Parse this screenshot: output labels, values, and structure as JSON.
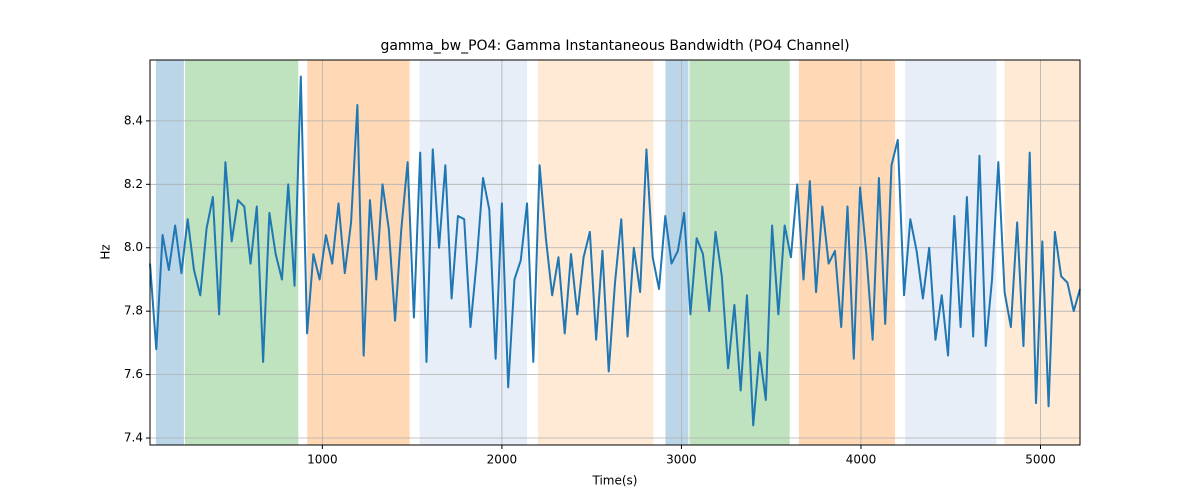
{
  "chart_data": {
    "type": "line",
    "title": "gamma_bw_PO4: Gamma Instantaneous Bandwidth (PO4 Channel)",
    "x_label": "Time(s)",
    "y_label": "Hz",
    "xlim": [
      40,
      5220
    ],
    "ylim": [
      7.378,
      8.592
    ],
    "xticks": [
      1000,
      2000,
      3000,
      4000,
      5000
    ],
    "yticks": [
      7.4,
      7.6,
      7.8,
      {
        "value": 8,
        "label": "8.0"
      },
      8.2,
      8.4
    ],
    "grid": true,
    "region_opacity": 0.3,
    "regions": [
      {
        "start": 73,
        "end": 229,
        "color": "#1f77b4"
      },
      {
        "start": 235,
        "end": 866,
        "color": "#2ca02c"
      },
      {
        "start": 916,
        "end": 1486,
        "color": "#ff7f0e"
      },
      {
        "start": 1542,
        "end": 2140,
        "color": "#aec7e8"
      },
      {
        "start": 2201,
        "end": 2844,
        "color": "#ffbb78"
      },
      {
        "start": 2911,
        "end": 3039,
        "color": "#1f77b4"
      },
      {
        "start": 3045,
        "end": 3603,
        "color": "#2ca02c"
      },
      {
        "start": 3654,
        "end": 4190,
        "color": "#ff7f0e"
      },
      {
        "start": 4246,
        "end": 4754,
        "color": "#aec7e8"
      },
      {
        "start": 4799,
        "end": 5220,
        "color": "#ffbb78"
      }
    ],
    "x": [
      40,
      75,
      110,
      145,
      180,
      215,
      250,
      285,
      320,
      355,
      390,
      425,
      460,
      495,
      530,
      565,
      600,
      635,
      670,
      705,
      740,
      775,
      810,
      845,
      880,
      915,
      950,
      985,
      1020,
      1055,
      1090,
      1125,
      1160,
      1195,
      1230,
      1265,
      1300,
      1335,
      1370,
      1405,
      1440,
      1475,
      1510,
      1545,
      1580,
      1615,
      1650,
      1685,
      1720,
      1755,
      1790,
      1825,
      1860,
      1895,
      1930,
      1965,
      2000,
      2035,
      2070,
      2105,
      2140,
      2175,
      2210,
      2245,
      2280,
      2315,
      2350,
      2385,
      2420,
      2455,
      2490,
      2525,
      2560,
      2595,
      2630,
      2665,
      2700,
      2735,
      2770,
      2805,
      2840,
      2875,
      2910,
      2945,
      2980,
      3015,
      3050,
      3085,
      3120,
      3155,
      3190,
      3225,
      3260,
      3295,
      3330,
      3365,
      3400,
      3435,
      3470,
      3505,
      3540,
      3575,
      3610,
      3645,
      3680,
      3715,
      3750,
      3785,
      3820,
      3855,
      3890,
      3925,
      3960,
      3995,
      4030,
      4065,
      4100,
      4135,
      4170,
      4205,
      4240,
      4275,
      4310,
      4345,
      4380,
      4415,
      4450,
      4485,
      4520,
      4555,
      4590,
      4625,
      4660,
      4695,
      4730,
      4765,
      4800,
      4835,
      4870,
      4905,
      4940,
      4975,
      5010,
      5045,
      5080,
      5115,
      5150,
      5185,
      5220
    ],
    "series": [
      {
        "color": "#1f77b4",
        "values": [
          7.95,
          7.68,
          8.04,
          7.93,
          8.07,
          7.92,
          8.09,
          7.93,
          7.85,
          8.06,
          8.16,
          7.79,
          8.27,
          8.02,
          8.15,
          8.13,
          7.95,
          8.13,
          7.64,
          8.11,
          7.98,
          7.9,
          8.2,
          7.88,
          8.54,
          7.73,
          7.98,
          7.9,
          8.04,
          7.95,
          8.14,
          7.92,
          8.08,
          8.45,
          7.66,
          8.15,
          7.9,
          8.2,
          8.06,
          7.77,
          8.06,
          8.27,
          7.78,
          8.3,
          7.64,
          8.31,
          8.0,
          8.26,
          7.84,
          8.1,
          8.09,
          7.75,
          7.96,
          8.22,
          8.12,
          7.65,
          8.14,
          7.56,
          7.9,
          7.96,
          8.14,
          7.64,
          8.26,
          8.03,
          7.85,
          7.97,
          7.73,
          7.98,
          7.79,
          7.97,
          8.05,
          7.71,
          7.99,
          7.61,
          7.89,
          8.09,
          7.72,
          8.0,
          7.86,
          8.31,
          7.97,
          7.87,
          8.1,
          7.95,
          7.99,
          8.11,
          7.79,
          8.03,
          7.98,
          7.8,
          8.05,
          7.91,
          7.62,
          7.82,
          7.55,
          7.85,
          7.44,
          7.67,
          7.52,
          8.07,
          7.79,
          8.07,
          7.97,
          8.2,
          7.9,
          8.21,
          7.86,
          8.13,
          7.95,
          7.99,
          7.75,
          8.13,
          7.65,
          8.19,
          7.98,
          7.71,
          8.22,
          7.76,
          8.26,
          8.34,
          7.85,
          8.09,
          7.99,
          7.84,
          8.0,
          7.71,
          7.85,
          7.66,
          8.1,
          7.75,
          8.16,
          7.72,
          8.29,
          7.69,
          7.9,
          8.27,
          7.86,
          7.75,
          8.08,
          7.69,
          8.3,
          7.51,
          8.02,
          7.5,
          8.05,
          7.91,
          7.89,
          7.8,
          7.87
        ]
      }
    ]
  }
}
